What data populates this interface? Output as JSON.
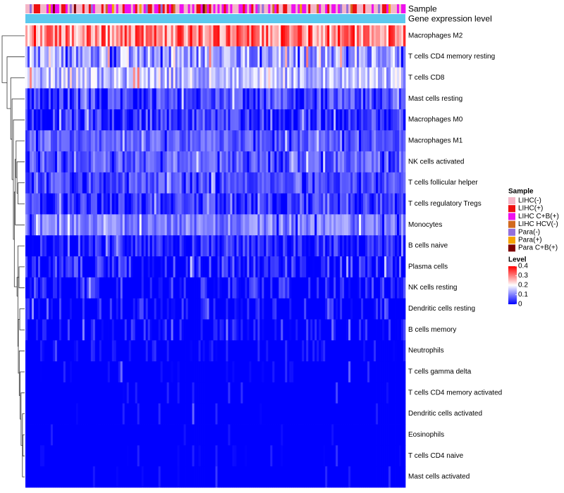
{
  "chart_data": {
    "type": "heatmap",
    "title": "",
    "rows": [
      {
        "name": "Macrophages M2",
        "mean": 0.3,
        "spread": 0.09,
        "sparsity": 0.0
      },
      {
        "name": "T cells CD4 memory resting",
        "mean": 0.12,
        "spread": 0.08,
        "sparsity": 0.02
      },
      {
        "name": "T cells CD8",
        "mean": 0.15,
        "spread": 0.07,
        "sparsity": 0.01
      },
      {
        "name": "Mast cells resting",
        "mean": 0.06,
        "spread": 0.05,
        "sparsity": 0.15
      },
      {
        "name": "Macrophages M0",
        "mean": 0.05,
        "spread": 0.05,
        "sparsity": 0.2
      },
      {
        "name": "Macrophages M1",
        "mean": 0.07,
        "spread": 0.04,
        "sparsity": 0.05
      },
      {
        "name": "NK cells activated",
        "mean": 0.07,
        "spread": 0.05,
        "sparsity": 0.08
      },
      {
        "name": "T cells follicular helper",
        "mean": 0.06,
        "spread": 0.04,
        "sparsity": 0.1
      },
      {
        "name": "T cells regulatory  Tregs",
        "mean": 0.05,
        "spread": 0.04,
        "sparsity": 0.15
      },
      {
        "name": "Monocytes",
        "mean": 0.1,
        "spread": 0.05,
        "sparsity": 0.02
      },
      {
        "name": "B cells naive",
        "mean": 0.04,
        "spread": 0.04,
        "sparsity": 0.3
      },
      {
        "name": "Plasma cells",
        "mean": 0.04,
        "spread": 0.05,
        "sparsity": 0.35
      },
      {
        "name": "NK cells resting",
        "mean": 0.03,
        "spread": 0.05,
        "sparsity": 0.45
      },
      {
        "name": "Dendritic cells resting",
        "mean": 0.02,
        "spread": 0.04,
        "sparsity": 0.6
      },
      {
        "name": "B cells memory",
        "mean": 0.02,
        "spread": 0.04,
        "sparsity": 0.6
      },
      {
        "name": "Neutrophils",
        "mean": 0.01,
        "spread": 0.03,
        "sparsity": 0.7
      },
      {
        "name": "T cells gamma delta",
        "mean": 0.01,
        "spread": 0.03,
        "sparsity": 0.85
      },
      {
        "name": "T cells CD4 memory activated",
        "mean": 0.01,
        "spread": 0.03,
        "sparsity": 0.9
      },
      {
        "name": "Dendritic cells activated",
        "mean": 0.01,
        "spread": 0.03,
        "sparsity": 0.92
      },
      {
        "name": "Eosinophils",
        "mean": 0.005,
        "spread": 0.02,
        "sparsity": 0.95
      },
      {
        "name": "T cells CD4 naive",
        "mean": 0.01,
        "spread": 0.03,
        "sparsity": 0.9
      },
      {
        "name": "Mast cells activated",
        "mean": 0.01,
        "spread": 0.03,
        "sparsity": 0.9
      }
    ],
    "n_samples": 180,
    "annotations": [
      {
        "name": "Sample",
        "kind": "sample"
      },
      {
        "name": "Gene expression level",
        "kind": "level",
        "color": "#5bc8ee"
      }
    ],
    "legends": {
      "sample": {
        "title": "Sample",
        "entries": [
          {
            "label": "LIHC(-)",
            "color": "#f4b6c8",
            "share": 0.4
          },
          {
            "label": "LIHC(+)",
            "color": "#ee1010",
            "share": 0.18
          },
          {
            "label": "LIHC C+B(+)",
            "color": "#ee10ee",
            "share": 0.25
          },
          {
            "label": "LIHC HCV(-)",
            "color": "#d2691e",
            "share": 0.07
          },
          {
            "label": "Para(-)",
            "color": "#9370db",
            "share": 0.05
          },
          {
            "label": "Para(+)",
            "color": "#f5a300",
            "share": 0.03
          },
          {
            "label": "Para C+B(+)",
            "color": "#800000",
            "share": 0.02
          }
        ]
      },
      "level": {
        "title": "Level",
        "min": 0,
        "max": 0.4,
        "ticks": [
          {
            "value": 0.4,
            "label": "0.4"
          },
          {
            "value": 0.3,
            "label": "0.3"
          },
          {
            "value": 0.2,
            "label": "0.2"
          },
          {
            "value": 0.1,
            "label": "0.1"
          },
          {
            "value": 0,
            "label": "0"
          }
        ],
        "color_stops": [
          "#0000ff",
          "#ffffff",
          "#ff0000"
        ]
      }
    },
    "dendrogram": {
      "side": "left",
      "merges": [
        [
          19,
          20,
          0.08
        ],
        [
          18,
          21,
          0.1
        ],
        [
          -1,
          -2,
          0.13
        ],
        [
          17,
          -3,
          0.16
        ],
        [
          16,
          -4,
          0.2
        ],
        [
          15,
          -5,
          0.24
        ],
        [
          13,
          14,
          0.22
        ],
        [
          -6,
          -7,
          0.28
        ],
        [
          11,
          12,
          0.25
        ],
        [
          10,
          -8,
          0.3
        ],
        [
          -9,
          -10,
          0.34
        ],
        [
          7,
          8,
          0.3
        ],
        [
          6,
          -12,
          0.34
        ],
        [
          5,
          -13,
          0.38
        ],
        [
          9,
          -14,
          0.42
        ],
        [
          -11,
          -15,
          0.46
        ],
        [
          4,
          -16,
          0.5
        ],
        [
          3,
          -17,
          0.56
        ],
        [
          2,
          -18,
          0.62
        ],
        [
          1,
          -19,
          0.78
        ],
        [
          0,
          -20,
          1.0
        ]
      ]
    }
  }
}
